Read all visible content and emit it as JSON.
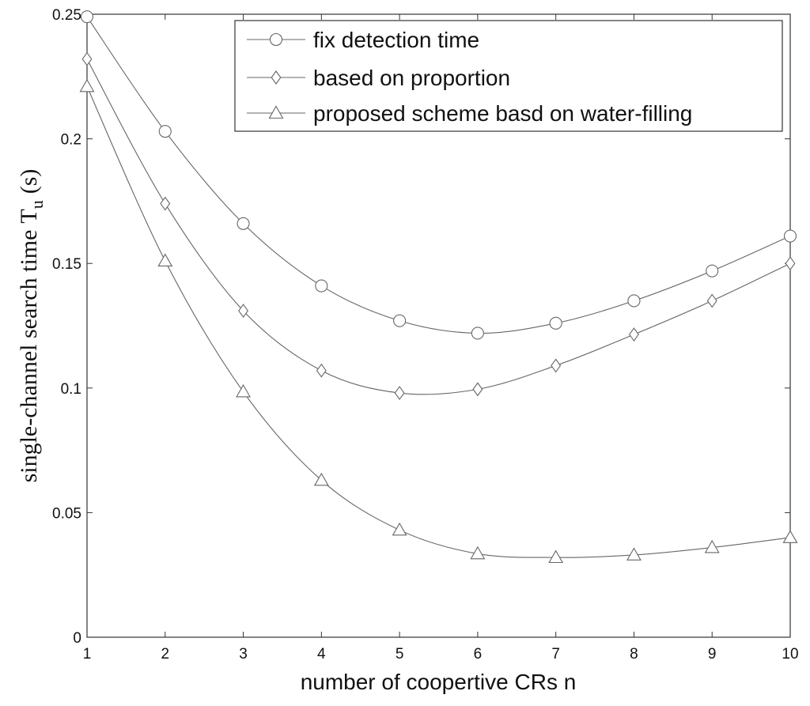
{
  "chart_data": {
    "type": "line",
    "title": "",
    "xlabel": "number of coopertive CRs n",
    "ylabel": "single-channel search time",
    "ylabel_symbol": "T",
    "ylabel_subscript": "u",
    "ylabel_unit": "(s)",
    "xlim": [
      1,
      10
    ],
    "ylim": [
      0,
      0.25
    ],
    "xticks": [
      1,
      2,
      3,
      4,
      5,
      6,
      7,
      8,
      9,
      10
    ],
    "yticks": [
      0,
      0.05,
      0.1,
      0.15,
      0.2,
      0.25
    ],
    "ytick_labels": [
      "0",
      "0.05",
      "0.1",
      "0.15",
      "0.2",
      "0.25"
    ],
    "grid": false,
    "legend_position": "top-right",
    "x": [
      1,
      2,
      3,
      4,
      5,
      6,
      7,
      8,
      9,
      10
    ],
    "series": [
      {
        "name": "fix detection time",
        "marker": "circle",
        "values": [
          0.249,
          0.203,
          0.166,
          0.141,
          0.127,
          0.122,
          0.126,
          0.135,
          0.147,
          0.161
        ]
      },
      {
        "name": "based on proportion",
        "marker": "diamond",
        "values": [
          0.232,
          0.174,
          0.131,
          0.107,
          0.098,
          0.0995,
          0.109,
          0.1215,
          0.135,
          0.15
        ]
      },
      {
        "name": "proposed scheme basd on water-filling",
        "marker": "triangle",
        "values": [
          0.221,
          0.151,
          0.0985,
          0.063,
          0.043,
          0.0335,
          0.032,
          0.033,
          0.036,
          0.04
        ]
      }
    ],
    "colors": {
      "line": "#666666",
      "axis": "#333333",
      "background": "#ffffff"
    }
  }
}
